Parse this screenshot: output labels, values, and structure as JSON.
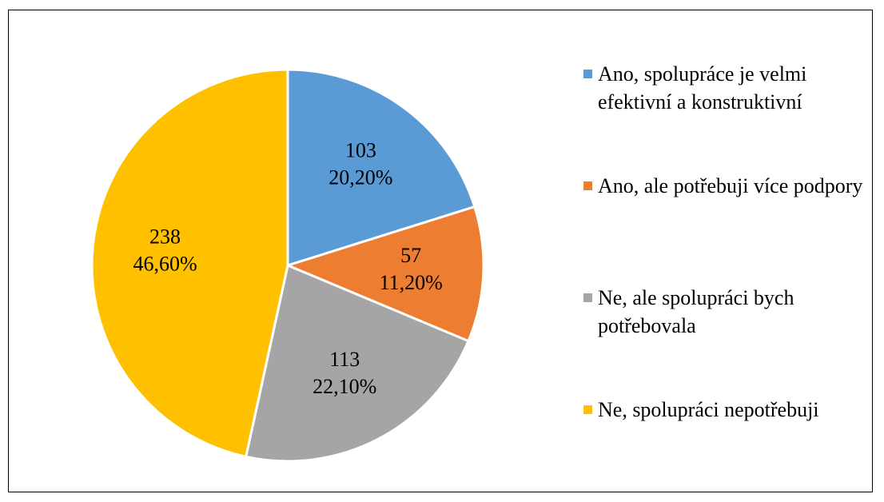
{
  "chart_data": {
    "type": "pie",
    "categories": [
      "Ano, spolupráce je velmi efektivní a konstruktivní",
      "Ano, ale potřebuji více podpory",
      "Ne, ale spolupráci bych potřebovala",
      "Ne, spolupráci nepotřebuji"
    ],
    "values": [
      103,
      57,
      113,
      238
    ],
    "percents": [
      20.2,
      11.2,
      22.1,
      46.6
    ],
    "percent_labels": [
      "20,20%",
      "11,20%",
      "22,10%",
      "46,60%"
    ],
    "colors": [
      "#5b9bd5",
      "#ed7d31",
      "#a5a5a5",
      "#ffc000"
    ],
    "legend": "right"
  }
}
